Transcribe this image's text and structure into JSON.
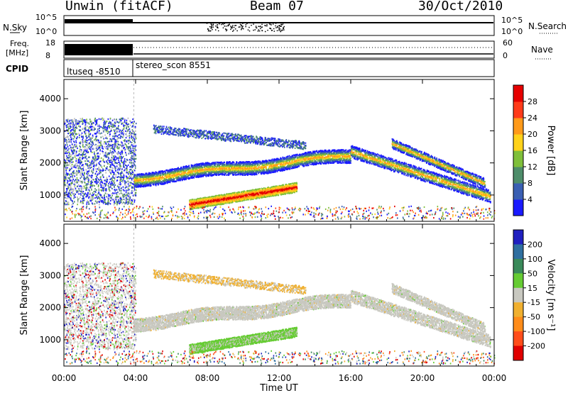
{
  "header": {
    "station": "Unwin (fitACF)",
    "beam": "Beam 07",
    "date": "30/Oct/2010"
  },
  "noise_panel": {
    "left_label": "N.Sky",
    "left_ticks": [
      "10^5",
      "10^0"
    ],
    "right_ticks": [
      "10^5",
      "10^0"
    ],
    "right_label": "N.Search"
  },
  "freq_panel": {
    "left_label_1": "Freq.",
    "left_label_2": "[MHz]",
    "left_ticks": [
      "18",
      "8"
    ],
    "right_ticks": [
      "60",
      "0"
    ],
    "right_label": "Nave"
  },
  "cpid_panel": {
    "label": "CPID",
    "segments": [
      "ltuseq -8510",
      "stereo_scon 8551"
    ]
  },
  "chart_data": [
    {
      "type": "heatmap",
      "name": "power-panel",
      "ylabel": "Slant Range [km]",
      "ylim": [
        180,
        4600
      ],
      "yticks": [
        "1000",
        "2000",
        "3000",
        "4000"
      ],
      "xlim_hours": [
        0,
        24
      ],
      "colorbar": {
        "label": "Power [dB]",
        "ticks": [
          "4",
          "8",
          "12",
          "16",
          "20",
          "24",
          "28"
        ],
        "colors": [
          "#1a1aff",
          "#3a5fb3",
          "#4e8d6a",
          "#7fbf3a",
          "#ffd21a",
          "#ff9a1a",
          "#ff3b1a",
          "#e60000"
        ]
      }
    },
    {
      "type": "heatmap",
      "name": "velocity-panel",
      "ylabel": "Slant Range [km]",
      "ylim": [
        180,
        4600
      ],
      "yticks": [
        "1000",
        "2000",
        "3000",
        "4000"
      ],
      "xlim_hours": [
        0,
        24
      ],
      "colorbar": {
        "label": "Velocity [m s⁻¹]",
        "ticks": [
          "200",
          "100",
          "50",
          "15",
          "-15",
          "-50",
          "-100",
          "-200"
        ],
        "colors": [
          "#2020c0",
          "#2f6fa0",
          "#3a8a5a",
          "#66cc33",
          "#c8c8c0",
          "#f0b030",
          "#ff8c1a",
          "#ff4d1a",
          "#e00000"
        ]
      }
    }
  ],
  "x_axis": {
    "ticks": [
      "00:00",
      "04:00",
      "08:00",
      "12:00",
      "16:00",
      "20:00",
      "00:00"
    ],
    "label": "Time UT"
  }
}
